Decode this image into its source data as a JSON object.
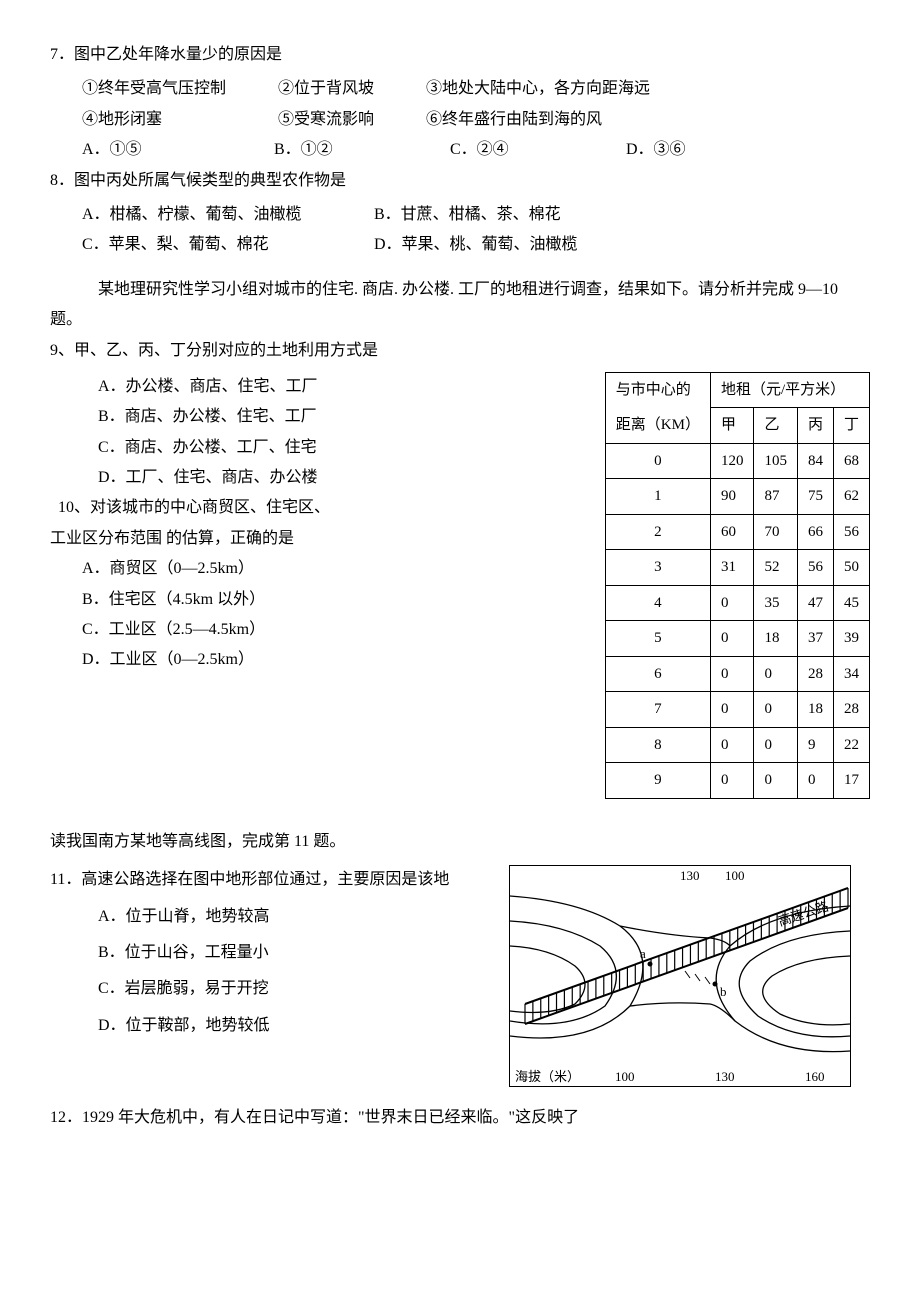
{
  "q7": {
    "stem": "7．图中乙处年降水量少的原因是",
    "items": [
      "①终年受高气压控制",
      "②位于背风坡",
      "③地处大陆中心，各方向距海远",
      "④地形闭塞",
      "⑤受寒流影响",
      "⑥终年盛行由陆到海的风"
    ],
    "opts": {
      "A": "A．①⑤",
      "B": "B．①②",
      "C": "C．②④",
      "D": "D．③⑥"
    }
  },
  "q8": {
    "stem": "8．图中丙处所属气候类型的典型农作物是",
    "opts": {
      "A": "A．柑橘、柠檬、葡萄、油橄榄",
      "B": "B．甘蔗、柑橘、茶、棉花",
      "C": "C．苹果、梨、葡萄、棉花",
      "D": "D．苹果、桃、葡萄、油橄榄"
    }
  },
  "lead9": "某地理研究性学习小组对城市的住宅. 商店. 办公楼. 工厂的地租进行调查，结果如下。请分析并完成 9—10 题。",
  "q9": {
    "stem": "9、甲、乙、丙、丁分别对应的土地利用方式是",
    "opts": {
      "A": "A．办公楼、商店、住宅、工厂",
      "B": "B．商店、办公楼、住宅、工厂",
      "C": "C．商店、办公楼、工厂、住宅",
      "D": "D．工厂、住宅、商店、办公楼"
    }
  },
  "q10": {
    "stem1": "10、对该城市的中心商贸区、住宅区、",
    "stem2": "工业区分布范围 的估算，正确的是",
    "opts": {
      "A": "A．商贸区（0—2.5km）",
      "B": "B．住宅区（4.5km 以外）",
      "C": "C．工业区（2.5—4.5km）",
      "D": "D．工业区（0—2.5km）"
    }
  },
  "rentTable": {
    "hdr_dist1": "与市中心的",
    "hdr_dist2": "距离（KM）",
    "hdr_rent": "地租（元/平方米）",
    "cols": [
      "甲",
      "乙",
      "丙",
      "丁"
    ],
    "rows": [
      {
        "d": "0",
        "v": [
          "120",
          "105",
          "84",
          "68"
        ]
      },
      {
        "d": "1",
        "v": [
          "90",
          "87",
          "75",
          "62"
        ]
      },
      {
        "d": "2",
        "v": [
          "60",
          "70",
          "66",
          "56"
        ]
      },
      {
        "d": "3",
        "v": [
          "31",
          "52",
          "56",
          "50"
        ]
      },
      {
        "d": "4",
        "v": [
          "0",
          "35",
          "47",
          "45"
        ]
      },
      {
        "d": "5",
        "v": [
          "0",
          "18",
          "37",
          "39"
        ]
      },
      {
        "d": "6",
        "v": [
          "0",
          "0",
          "28",
          "34"
        ]
      },
      {
        "d": "7",
        "v": [
          "0",
          "0",
          "18",
          "28"
        ]
      },
      {
        "d": "8",
        "v": [
          "0",
          "0",
          "9",
          "22"
        ]
      },
      {
        "d": "9",
        "v": [
          "0",
          "0",
          "0",
          "17"
        ]
      }
    ]
  },
  "lead11": "读我国南方某地等高线图，完成第 11 题。",
  "q11": {
    "stem": "11．高速公路选择在图中地形部位通过，主要原因是该地",
    "opts": {
      "A": "A．位于山脊，地势较高",
      "B": "B．位于山谷，工程量小",
      "C": "C．岩层脆弱，易于开挖",
      "D": "D．位于鞍部，地势较低"
    }
  },
  "contour": {
    "topLabels": [
      "130",
      "100"
    ],
    "bottomAxis": "海拔（米）",
    "bottomTicks": [
      "100",
      "130",
      "160"
    ],
    "roadLabel": "高速公路",
    "ptA": "a",
    "ptB": "b",
    "colors": {
      "stroke": "#000000",
      "bg": "#ffffff"
    }
  },
  "q12": {
    "stem": "12．1929 年大危机中，有人在日记中写道：\"世界末日已经来临。\"这反映了"
  }
}
